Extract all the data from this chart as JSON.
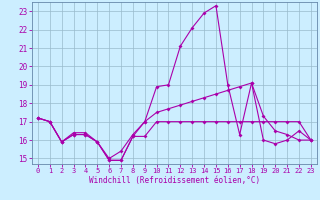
{
  "xlabel": "Windchill (Refroidissement éolien,°C)",
  "background_color": "#cceeff",
  "grid_color": "#99bbcc",
  "line_color": "#aa00aa",
  "spine_color": "#6688aa",
  "xlim": [
    -0.5,
    23.5
  ],
  "ylim": [
    14.7,
    23.5
  ],
  "yticks": [
    15,
    16,
    17,
    18,
    19,
    20,
    21,
    22,
    23
  ],
  "xticks": [
    0,
    1,
    2,
    3,
    4,
    5,
    6,
    7,
    8,
    9,
    10,
    11,
    12,
    13,
    14,
    15,
    16,
    17,
    18,
    19,
    20,
    21,
    22,
    23
  ],
  "series1": [
    17.2,
    17.0,
    15.9,
    16.3,
    16.3,
    15.9,
    14.9,
    14.9,
    16.2,
    16.2,
    17.0,
    17.0,
    17.0,
    17.0,
    17.0,
    17.0,
    17.0,
    17.0,
    17.0,
    17.0,
    17.0,
    17.0,
    17.0,
    16.0
  ],
  "series2": [
    17.2,
    17.0,
    15.9,
    16.4,
    16.4,
    15.9,
    15.0,
    15.4,
    16.3,
    17.0,
    18.9,
    19.0,
    21.1,
    22.1,
    22.9,
    23.3,
    19.0,
    16.3,
    19.1,
    17.3,
    16.5,
    16.3,
    16.0,
    16.0
  ],
  "series3": [
    17.2,
    17.0,
    15.9,
    16.3,
    16.3,
    15.9,
    14.9,
    14.9,
    16.2,
    17.0,
    17.5,
    17.7,
    17.9,
    18.1,
    18.3,
    18.5,
    18.7,
    18.9,
    19.1,
    16.0,
    15.8,
    16.0,
    16.5,
    16.0
  ]
}
